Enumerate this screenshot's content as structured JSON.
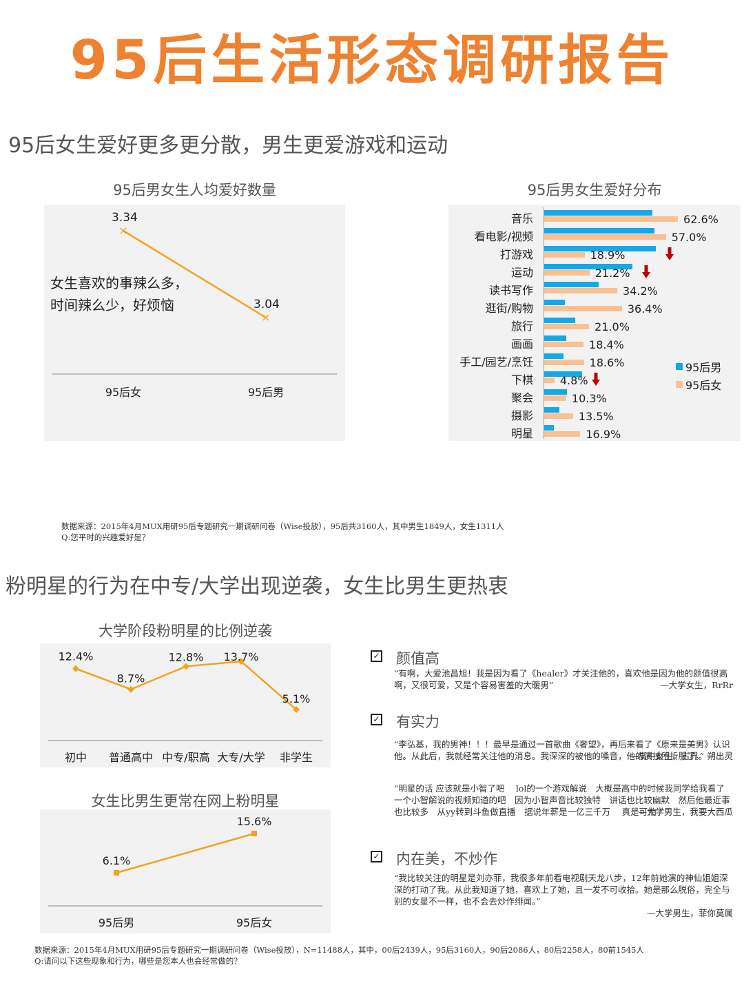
{
  "page": {
    "title": "95后生活形态调研报告",
    "accent_color": "#EE8230"
  },
  "section1": {
    "title": "95后女生爱好更多更分散，男生更爱游戏和运动",
    "left_chart": {
      "title": "95后男女生人均爱好数量",
      "annotation_line1": "女生喜欢的事辣么多，",
      "annotation_line2": "时间辣么少，好烦恼",
      "points": [
        {
          "label": "95后女",
          "value_label": "3.34"
        },
        {
          "label": "95后男",
          "value_label": "3.04"
        }
      ]
    },
    "right_chart": {
      "title": "95后男女生爱好分布",
      "legend": {
        "male": "95后男",
        "female": "95后女"
      },
      "colors": {
        "male": "#14A9E6",
        "female": "#F9C193",
        "arrow": "#C00000"
      }
    },
    "source_line1": "数据来源：2015年4月MUX用研95后专题研究一期调研问卷（Wise投放），95后共3160人，其中男生1849人，女生1311人",
    "source_line2": "Q:您平时的兴趣爱好是？"
  },
  "section2": {
    "title": "粉明星的行为在中专/大学出现逆袭，女生比男生更热衷",
    "stage_chart": {
      "title": "大学阶段粉明星的比例逆袭"
    },
    "gender_chart": {
      "title": "女生比男生更常在网上粉明星"
    },
    "reasons": [
      {
        "heading": "颜值高",
        "quotes": [
          {
            "text": "“有啊，大爱池昌旭！我是因为看了《healer》才关注他的，喜欢他是因为他的颜值很高啊，又很可爱，又是个容易害羞的大暖男”",
            "author": "—大学女生，RrRr"
          }
        ]
      },
      {
        "heading": "有实力",
        "quotes": [
          {
            "text": "“李弘基，我的男神！！！最早是通过一首歌曲《奢望》，再后来看了《原来是美男》认识他。从此后，我就经常关注他的消息。我深深的被他的嗓音，他的演技所折服了。”",
            "author": "—高中女生，古界。朔出灵"
          },
          {
            "text": "“明星的话 应该就是小智了吧　 lol的一个游戏解说　大概是高中的时候我同学给我看了一个小智解说的视频知道的吧　因为小智声音比较独特　讲话也比较幽默　然后他最近事也比较多　从yy转到斗鱼做直播　据说年薪是一亿三千万　 真是可怕 ”",
            "author": "—大学男生，我要大西瓜"
          }
        ]
      },
      {
        "heading": "内在美，不炒作",
        "quotes": [
          {
            "text": "“我比较关注的明星是刘亦菲，我很多年前看电视剧天龙八步，12年前她演的神仙姐姐深深的打动了我。从此我知道了她，喜欢上了她，且一发不可收拾。她是那么脱俗，完全与别的女星不一样，也不会去炒作绯闻。”",
            "author": "—大学男生，菲你莫属"
          }
        ]
      }
    ],
    "source_line1": "数据来源：2015年4月MUX用研95后专题研究一期调研问卷（Wise投放），N=11488人，其中，00后2439人，95后3160人，90后2086人，80后2258人，80前1545人",
    "source_line2": "Q:请问以下这些现象和行为，哪些是您本人也会经常做的？"
  },
  "chart_data": [
    {
      "type": "line",
      "title": "95后男女生人均爱好数量",
      "categories": [
        "95后女",
        "95后男"
      ],
      "values": [
        3.34,
        3.04
      ],
      "xlabel": "",
      "ylabel": "",
      "annotation": "女生喜欢的事辣么多，时间辣么少，好烦恼",
      "grid": false
    },
    {
      "type": "bar",
      "orientation": "horizontal",
      "title": "95后男女生爱好分布",
      "categories": [
        "音乐",
        "看电影/视频",
        "打游戏",
        "运动",
        "读书写作",
        "逛街/购物",
        "旅行",
        "画画",
        "手工/园艺/烹饪",
        "下棋",
        "聚会",
        "摄影",
        "明星"
      ],
      "series": [
        {
          "name": "95后男",
          "values": [
            50.5,
            51.5,
            52.3,
            41.2,
            25.6,
            9.7,
            14.6,
            10.3,
            9.0,
            17.6,
            10.6,
            7.1,
            4.4
          ]
        },
        {
          "name": "95后女",
          "values": [
            62.6,
            57.0,
            18.9,
            21.2,
            34.2,
            36.4,
            21.0,
            18.4,
            18.6,
            4.8,
            10.3,
            13.5,
            16.9
          ]
        }
      ],
      "labeled_series": "95后女",
      "down_arrows_on": [
        "打游戏",
        "运动",
        "下棋"
      ],
      "legend_position": "right",
      "grid": false
    },
    {
      "type": "line",
      "title": "大学阶段粉明星的比例逆袭",
      "categories": [
        "初中",
        "普通高中",
        "中专/职高",
        "大专/大学",
        "非学生"
      ],
      "values": [
        12.4,
        8.7,
        12.8,
        13.7,
        5.1
      ],
      "value_labels": [
        "12.4%",
        "8.7%",
        "12.8%",
        "13.7%",
        "5.1%"
      ],
      "marker": "diamond",
      "grid": false
    },
    {
      "type": "line",
      "title": "女生比男生更常在网上粉明星",
      "categories": [
        "95后男",
        "95后女"
      ],
      "values": [
        6.1,
        15.6
      ],
      "value_labels": [
        "6.1%",
        "15.6%"
      ],
      "marker": "square",
      "grid": false
    }
  ]
}
